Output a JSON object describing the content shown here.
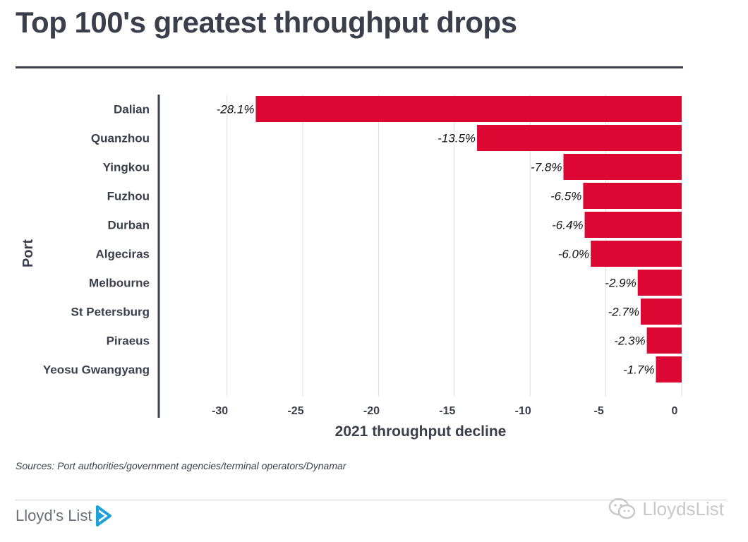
{
  "title": "Top 100's greatest throughput drops",
  "source": "Sources: Port authorities/government agencies/terminal operators/Dynamar",
  "brand": {
    "logo_text": "Lloyd’s List",
    "logo_icon": "chevron-play-icon",
    "watermark_text": "LloydsList",
    "watermark_icon": "chat-bubbles-icon"
  },
  "colors": {
    "bar": "#dc0733",
    "text": "#3a3f4b",
    "grid": "#dddddd",
    "logo_accent": "#1ea0d8"
  },
  "chart_data": {
    "type": "bar",
    "orientation": "horizontal",
    "categories": [
      "Dalian",
      "Quanzhou",
      "Yingkou",
      "Fuzhou",
      "Durban",
      "Algeciras",
      "Melbourne",
      "St Petersburg",
      "Piraeus",
      "Yeosu Gwangyang"
    ],
    "values": [
      -28.1,
      -13.5,
      -7.8,
      -6.5,
      -6.4,
      -6.0,
      -2.9,
      -2.7,
      -2.3,
      -1.7
    ],
    "value_labels": [
      "-28.1%",
      "-13.5%",
      "-7.8%",
      "-6.5%",
      "-6.4%",
      "-6.0%",
      "-2.9%",
      "-2.7%",
      "-2.3%",
      "-1.7%"
    ],
    "xlabel": "2021 throughput decline",
    "ylabel": "Port",
    "xlim": [
      -34.5,
      0
    ],
    "xticks": [
      -30,
      -25,
      -20,
      -15,
      -10,
      -5,
      0
    ],
    "xtick_labels": [
      "-30",
      "-25",
      "-20",
      "-15",
      "-10",
      "-5",
      "0"
    ],
    "grid": true,
    "legend": "none"
  }
}
